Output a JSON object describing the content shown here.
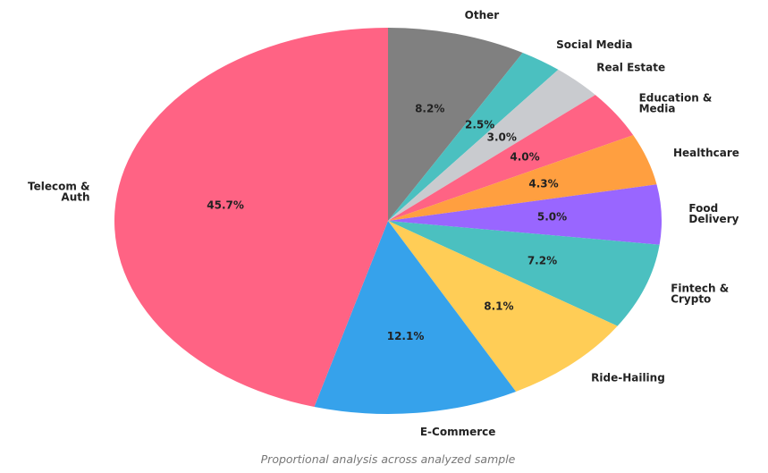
{
  "chart_data": {
    "type": "pie",
    "title": "",
    "caption": "Proportional analysis across analyzed sample",
    "start_angle_deg": 90,
    "direction": "clockwise",
    "slices": [
      {
        "label": "Other",
        "value": 8.2,
        "pct_label": "8.2%",
        "color": "#808080"
      },
      {
        "label": "Social Media",
        "value": 2.5,
        "pct_label": "2.5%",
        "color": "#4BC0C0"
      },
      {
        "label": "Real Estate",
        "value": 3.0,
        "pct_label": "3.0%",
        "color": "#C9CBCF"
      },
      {
        "label": "Education & Media",
        "value": 4.0,
        "pct_label": "4.0%",
        "color": "#FF6384"
      },
      {
        "label": "Healthcare",
        "value": 4.3,
        "pct_label": "4.3%",
        "color": "#FF9F40"
      },
      {
        "label": "Food Delivery",
        "value": 5.0,
        "pct_label": "5.0%",
        "color": "#9966FF"
      },
      {
        "label": "Fintech & Crypto",
        "value": 7.2,
        "pct_label": "7.2%",
        "color": "#4BC0C0"
      },
      {
        "label": "Ride-Hailing",
        "value": 8.1,
        "pct_label": "8.1%",
        "color": "#FFCD56"
      },
      {
        "label": "E-Commerce",
        "value": 12.1,
        "pct_label": "12.1%",
        "color": "#36A2EB"
      },
      {
        "label": "Telecom & Auth",
        "value": 45.7,
        "pct_label": "45.7%",
        "color": "#FF6384"
      }
    ],
    "label_lines": [
      [
        "Other"
      ],
      [
        "Social Media"
      ],
      [
        "Real Estate"
      ],
      [
        "Education &",
        "Media"
      ],
      [
        "Healthcare"
      ],
      [
        "Food",
        "Delivery"
      ],
      [
        "Fintech &",
        "Crypto"
      ],
      [
        "Ride-Hailing"
      ],
      [
        "E-Commerce"
      ],
      [
        "Telecom &",
        "Auth"
      ]
    ]
  }
}
